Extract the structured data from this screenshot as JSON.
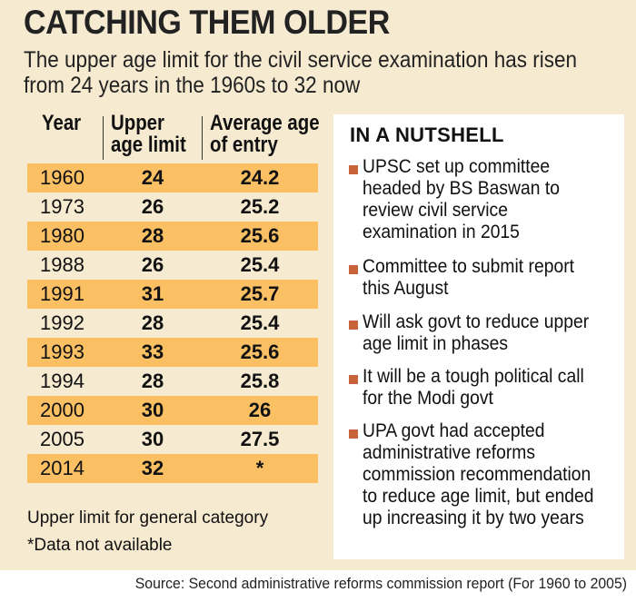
{
  "title": "CATCHING THEM OLDER",
  "subtitle": "The upper age limit for the civil service examination has risen from 24 years in the 1960s to 32 now",
  "table": {
    "headers": {
      "year": "Year",
      "upper_1": "Upper",
      "upper_2": "age limit",
      "avg_1": "Average age",
      "avg_2": "of entry"
    },
    "rows": [
      {
        "year": "1960",
        "upper": "24",
        "avg": "24.2"
      },
      {
        "year": "1973",
        "upper": "26",
        "avg": "25.2"
      },
      {
        "year": "1980",
        "upper": "28",
        "avg": "25.6"
      },
      {
        "year": "1988",
        "upper": "26",
        "avg": "25.4"
      },
      {
        "year": "1991",
        "upper": "31",
        "avg": "25.7"
      },
      {
        "year": "1992",
        "upper": "28",
        "avg": "25.4"
      },
      {
        "year": "1993",
        "upper": "33",
        "avg": "25.6"
      },
      {
        "year": "1994",
        "upper": "28",
        "avg": "25.8"
      },
      {
        "year": "2000",
        "upper": "30",
        "avg": "26"
      },
      {
        "year": "2005",
        "upper": "30",
        "avg": "27.5"
      },
      {
        "year": "2014",
        "upper": "32",
        "avg": "*"
      }
    ],
    "highlight_color": "#fbc063"
  },
  "notes": {
    "upper_limit": "Upper limit for general category",
    "data_na": "*Data not available"
  },
  "nutshell": {
    "title": "IN A NUTSHELL",
    "bullet_color": "#c8623a",
    "items": [
      "UPSC set up committee headed by BS Baswan to review civil service examination in 2015",
      "Committee to submit report this August",
      "Will ask govt to reduce upper age limit in phases",
      "It will be a tough political call for the Modi govt",
      "UPA govt had accepted administrative reforms commission recommendation to reduce age limit, but ended up increasing it by two years"
    ]
  },
  "source": "Source: Second administrative reforms commission report (For 1960 to 2005)"
}
